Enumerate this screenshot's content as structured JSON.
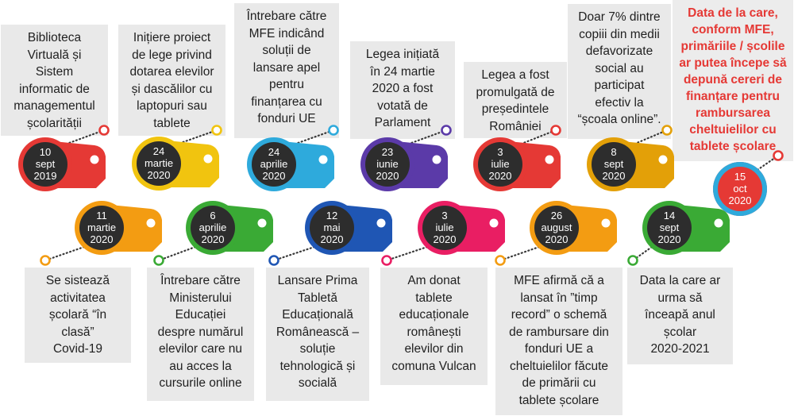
{
  "milestones": [
    {
      "date": [
        "10",
        "sept",
        "2019"
      ],
      "text": [
        "Biblioteca",
        "Virtuală și",
        "Sistem",
        "informatic de",
        "managementul",
        "școlarității"
      ],
      "color": "#e53935"
    },
    {
      "date": [
        "11",
        "martie",
        "2020"
      ],
      "text": [
        "Se sistează",
        "activitatea",
        "școlară “în",
        "clasă”",
        "Covid-19"
      ],
      "color": "#f39c12"
    },
    {
      "date": [
        "24",
        "martie",
        "2020"
      ],
      "text": [
        "Inițiere proiect",
        "de lege privind",
        "dotarea elevilor",
        "și dascălilor cu",
        "laptopuri sau",
        "tablete"
      ],
      "color": "#f1c40f"
    },
    {
      "date": [
        "6",
        "aprilie",
        "2020"
      ],
      "text": [
        "Întrebare către",
        "Ministerului",
        "Educației",
        "despre numărul",
        "elevilor care nu",
        "au acces la",
        "cursurile online"
      ],
      "color": "#3aaa35"
    },
    {
      "date": [
        "24",
        "aprilie",
        "2020"
      ],
      "text": [
        "Întrebare către",
        "MFE indicând",
        "soluții de",
        "lansare apel",
        "pentru",
        "finanțarea cu",
        "fonduri UE"
      ],
      "color": "#2eaadc"
    },
    {
      "date": [
        "12",
        "mai",
        "2020"
      ],
      "text": [
        "Lansare Prima",
        "Tabletă",
        "Educațională",
        "Românească –",
        "soluție",
        "tehnologică și",
        "socială"
      ],
      "color": "#1f56b4"
    },
    {
      "date": [
        "23",
        "iunie",
        "2020"
      ],
      "text": [
        "Legea inițiată",
        "în 24 martie",
        "2020 a fost",
        "votată de",
        "Parlament"
      ],
      "color": "#5b3aa8"
    },
    {
      "date": [
        "3",
        "iulie",
        "2020"
      ],
      "text": [
        "Am donat",
        "tablete",
        "educaționale",
        "românești",
        "elevilor din",
        "comuna Vulcan"
      ],
      "color": "#e91e63"
    },
    {
      "date": [
        "3",
        "iulie",
        "2020"
      ],
      "text": [
        "Legea a fost",
        "promulgată de",
        "președintele",
        "României"
      ],
      "color": "#e53935"
    },
    {
      "date": [
        "26",
        "august",
        "2020"
      ],
      "text": [
        "MFE afirmă că a",
        "lansat în ”timp",
        "record” o schemă",
        "de rambursare din",
        "fonduri UE a",
        "cheltuielilor făcute",
        "de primării cu",
        "tablete școlare"
      ],
      "color": "#f39c12"
    },
    {
      "date": [
        "8",
        "sept",
        "2020"
      ],
      "text": [
        "Doar 7% dintre",
        "copiii din medii",
        "defavorizate",
        "social au",
        "participat",
        "efectiv la",
        "“școala online”."
      ],
      "color": "#e3a008"
    },
    {
      "date": [
        "14",
        "sept",
        "2020"
      ],
      "text": [
        "Data la care ar",
        "urma să",
        "înceapă anul",
        "școlar",
        "2020-2021"
      ],
      "color": "#3aaa35"
    },
    {
      "date": [
        "15",
        "oct",
        "2020"
      ],
      "text": [
        "Data de la care,",
        "conform MFE,",
        "primăriile / școlile",
        "ar putea începe să",
        "depună cereri de",
        "finanțare pentru",
        "rambursarea",
        "cheltuielilor cu",
        "tablete școlare"
      ],
      "color": "#e53935"
    }
  ]
}
